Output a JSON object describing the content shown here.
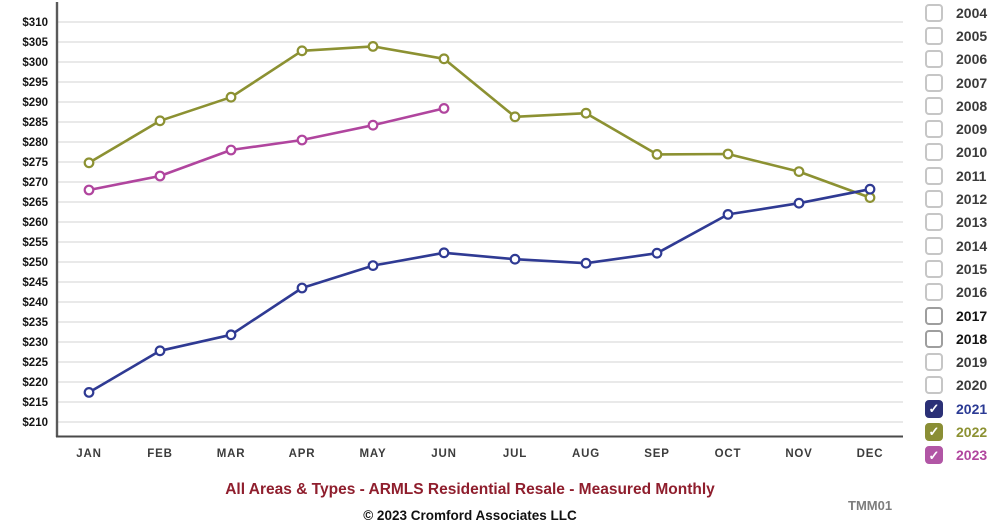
{
  "chart_data": {
    "type": "line",
    "title": "All Areas & Types - ARMLS Residential Resale - Measured Monthly",
    "categories": [
      "JAN",
      "FEB",
      "MAR",
      "APR",
      "MAY",
      "JUN",
      "JUL",
      "AUG",
      "SEP",
      "OCT",
      "NOV",
      "DEC"
    ],
    "y_axis": {
      "min": 210,
      "max": 310,
      "step": 5,
      "tick_prefix": "$",
      "unit": "price in $K"
    },
    "grid": "horizontal",
    "legend_position": "right",
    "series": [
      {
        "name": "2021",
        "color": "#2f3a93",
        "values": [
          217.4,
          227.8,
          231.8,
          243.5,
          249.1,
          252.3,
          250.7,
          249.7,
          252.2,
          261.9,
          264.7,
          268.2
        ]
      },
      {
        "name": "2022",
        "color": "#8c9132",
        "values": [
          274.8,
          285.3,
          291.2,
          302.8,
          303.9,
          300.8,
          286.3,
          287.2,
          276.9,
          277.0,
          272.6,
          266.1
        ]
      },
      {
        "name": "2023",
        "color": "#b0459e",
        "values": [
          268.0,
          271.5,
          278.0,
          280.5,
          284.2,
          288.4
        ]
      }
    ]
  },
  "legend": {
    "items": [
      {
        "label": "2004",
        "checked": false
      },
      {
        "label": "2005",
        "checked": false
      },
      {
        "label": "2006",
        "checked": false
      },
      {
        "label": "2007",
        "checked": false
      },
      {
        "label": "2008",
        "checked": false
      },
      {
        "label": "2009",
        "checked": false
      },
      {
        "label": "2010",
        "checked": false
      },
      {
        "label": "2011",
        "checked": false
      },
      {
        "label": "2012",
        "checked": false
      },
      {
        "label": "2013",
        "checked": false
      },
      {
        "label": "2014",
        "checked": false
      },
      {
        "label": "2015",
        "checked": false
      },
      {
        "label": "2016",
        "checked": false
      },
      {
        "label": "2017",
        "checked": false,
        "emphasized": true
      },
      {
        "label": "2018",
        "checked": false,
        "emphasized": true
      },
      {
        "label": "2019",
        "checked": false
      },
      {
        "label": "2020",
        "checked": false
      },
      {
        "label": "2021",
        "checked": true,
        "box_color": "#2b3076",
        "label_color": "#2b3a94"
      },
      {
        "label": "2022",
        "checked": true,
        "box_color": "#8a8e35",
        "label_color": "#8c9132"
      },
      {
        "label": "2023",
        "checked": true,
        "box_color": "#b156a5",
        "label_color": "#b0459e"
      }
    ],
    "check_glyph": "✓"
  },
  "footer": {
    "title": "All Areas & Types - ARMLS Residential Resale - Measured Monthly",
    "title_color": "#8f1e2d",
    "copyright": "© 2023 Cromford Associates LLC",
    "code": "TMM01"
  },
  "style_colors": {
    "gridline": "#dcdcdc",
    "axis": "#5a5a5a"
  }
}
